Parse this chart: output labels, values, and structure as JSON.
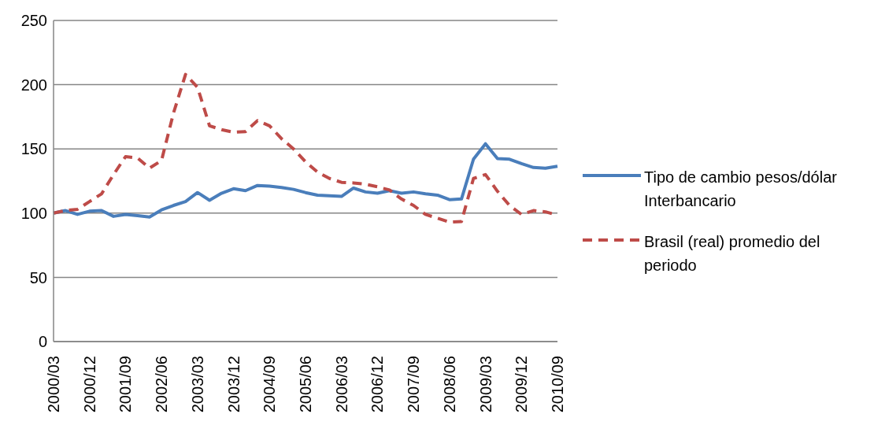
{
  "chart_data": {
    "type": "line",
    "categories": [
      "2000/03",
      null,
      null,
      "2000/12",
      null,
      null,
      "2001/09",
      null,
      null,
      "2002/06",
      null,
      null,
      "2003/03",
      null,
      null,
      "2003/12",
      null,
      null,
      "2004/09",
      null,
      null,
      "2005/06",
      null,
      null,
      "2006/03",
      null,
      null,
      "2006/12",
      null,
      null,
      "2007/09",
      null,
      null,
      "2008/06",
      null,
      null,
      "2009/03",
      null,
      null,
      "2009/12",
      null,
      null,
      "2010/09"
    ],
    "series": [
      {
        "name": "Tipo de cambio pesos/dólar Interbancario",
        "color": "#4a7ebb",
        "line_style": "solid",
        "values": [
          100,
          102,
          99,
          101.5,
          102,
          97.5,
          99,
          98,
          97,
          102.5,
          106,
          109,
          116,
          110,
          115.5,
          119,
          117.5,
          121.5,
          121,
          120,
          118.5,
          116,
          114,
          113.5,
          113,
          119.5,
          116.5,
          115.5,
          117.5,
          115.5,
          116.5,
          115,
          114,
          110.5,
          111,
          142,
          154,
          142.5,
          142,
          138.5,
          135.5,
          135,
          136.5
        ]
      },
      {
        "name": "Brasil (real) promedio del periodo",
        "color": "#be4b48",
        "line_style": "dashed",
        "values": [
          100,
          102,
          103,
          109,
          115,
          130,
          144,
          143,
          135,
          141,
          178,
          208,
          198,
          168,
          165,
          163,
          163.5,
          172,
          168,
          158,
          150,
          140,
          132,
          127,
          124,
          123.5,
          122.5,
          120.5,
          118,
          111,
          106,
          99,
          96,
          93,
          93.5,
          127,
          130,
          117,
          106,
          99,
          102,
          101,
          98.5
        ]
      }
    ],
    "ylim": [
      0,
      250
    ],
    "yticks": [
      0,
      50,
      100,
      150,
      200,
      250
    ],
    "grid": "y",
    "legend": "right",
    "marker": "none"
  }
}
